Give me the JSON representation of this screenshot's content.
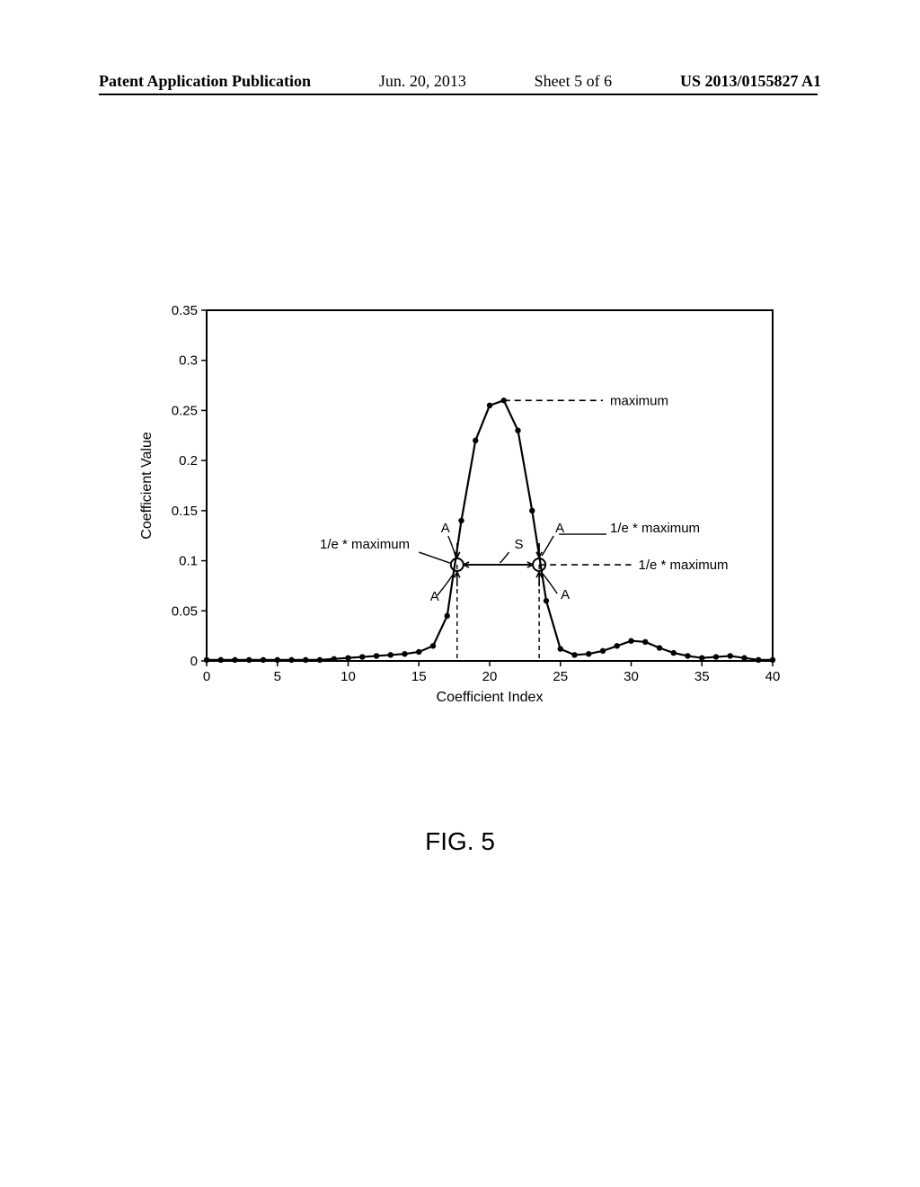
{
  "header": {
    "publication": "Patent Application Publication",
    "date": "Jun. 20, 2013",
    "sheet": "Sheet 5 of 6",
    "docnum": "US 2013/0155827 A1"
  },
  "caption": "FIG. 5",
  "chart": {
    "type": "line",
    "xlabel": "Coefficient Index",
    "ylabel": "Coefficient Value",
    "xlim": [
      0,
      40
    ],
    "ylim": [
      0,
      0.35
    ],
    "xticks": [
      0,
      5,
      10,
      15,
      20,
      25,
      30,
      35,
      40
    ],
    "yticks": [
      0,
      0.05,
      0.1,
      0.15,
      0.2,
      0.25,
      0.3,
      0.35
    ],
    "background_color": "#ffffff",
    "axis_color": "#000000",
    "line_color": "#000000",
    "line_width": 2.2,
    "marker_color": "#000000",
    "marker_radius": 3.2,
    "text_color": "#000000",
    "label_fontsize": 16,
    "tick_fontsize": 15,
    "points": [
      {
        "x": 0,
        "y": 0.001
      },
      {
        "x": 1,
        "y": 0.001
      },
      {
        "x": 2,
        "y": 0.001
      },
      {
        "x": 3,
        "y": 0.001
      },
      {
        "x": 4,
        "y": 0.001
      },
      {
        "x": 5,
        "y": 0.001
      },
      {
        "x": 6,
        "y": 0.001
      },
      {
        "x": 7,
        "y": 0.001
      },
      {
        "x": 8,
        "y": 0.001
      },
      {
        "x": 9,
        "y": 0.002
      },
      {
        "x": 10,
        "y": 0.003
      },
      {
        "x": 11,
        "y": 0.004
      },
      {
        "x": 12,
        "y": 0.005
      },
      {
        "x": 13,
        "y": 0.006
      },
      {
        "x": 14,
        "y": 0.007
      },
      {
        "x": 15,
        "y": 0.009
      },
      {
        "x": 16,
        "y": 0.015
      },
      {
        "x": 17,
        "y": 0.045
      },
      {
        "x": 18,
        "y": 0.14
      },
      {
        "x": 19,
        "y": 0.22
      },
      {
        "x": 20,
        "y": 0.255
      },
      {
        "x": 21,
        "y": 0.26
      },
      {
        "x": 22,
        "y": 0.23
      },
      {
        "x": 23,
        "y": 0.15
      },
      {
        "x": 24,
        "y": 0.06
      },
      {
        "x": 25,
        "y": 0.012
      },
      {
        "x": 26,
        "y": 0.006
      },
      {
        "x": 27,
        "y": 0.007
      },
      {
        "x": 28,
        "y": 0.01
      },
      {
        "x": 29,
        "y": 0.015
      },
      {
        "x": 30,
        "y": 0.02
      },
      {
        "x": 31,
        "y": 0.019
      },
      {
        "x": 32,
        "y": 0.013
      },
      {
        "x": 33,
        "y": 0.008
      },
      {
        "x": 34,
        "y": 0.005
      },
      {
        "x": 35,
        "y": 0.003
      },
      {
        "x": 36,
        "y": 0.004
      },
      {
        "x": 37,
        "y": 0.005
      },
      {
        "x": 38,
        "y": 0.003
      },
      {
        "x": 39,
        "y": 0.001
      },
      {
        "x": 40,
        "y": 0.001
      }
    ],
    "maximum_y": 0.26,
    "one_over_e_y": 0.096,
    "left_cross_x": 17.7,
    "right_cross_x": 23.5,
    "annotations": {
      "max_label": "maximum",
      "one_e_left": "1/e * maximum",
      "one_e_right_upper": "1/e * maximum",
      "one_e_right_lower": "1/e * maximum",
      "A": "A",
      "S": "S"
    }
  }
}
